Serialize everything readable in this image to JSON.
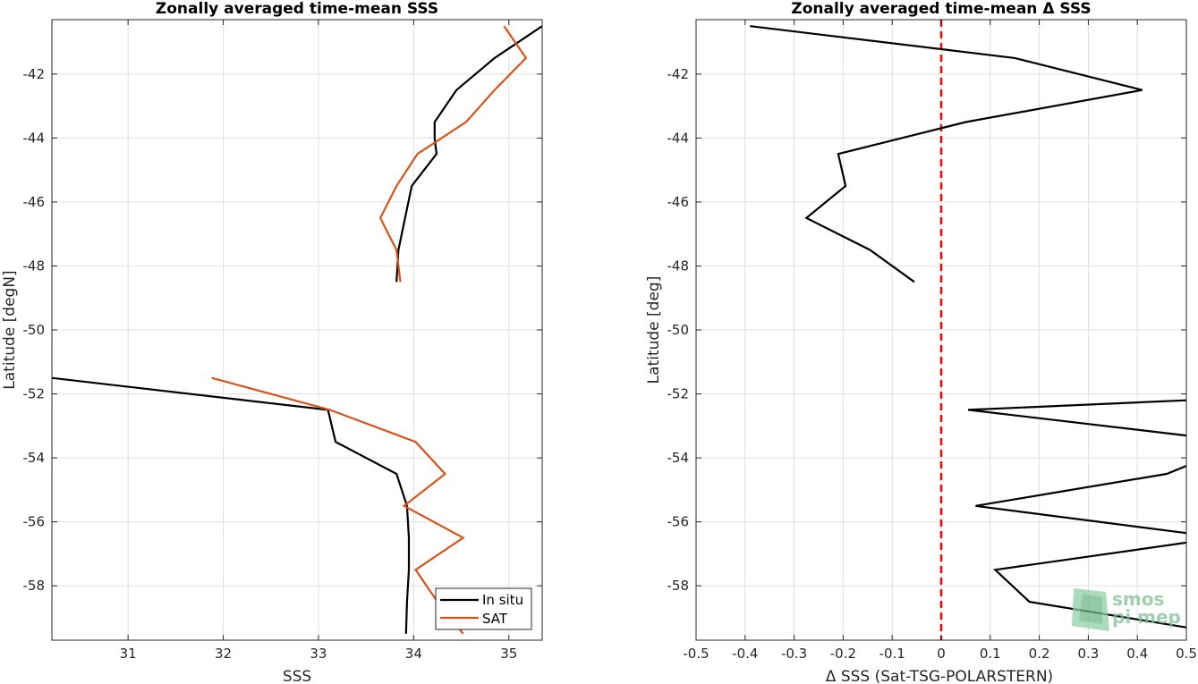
{
  "chart_data": [
    {
      "type": "line",
      "title": "Zonally averaged time-mean SSS",
      "xlabel": "SSS",
      "ylabel": "Latitude [degN]",
      "xlim": [
        30.2,
        35.35
      ],
      "ylim": [
        -59.7,
        -40.3
      ],
      "xticks": [
        31,
        32,
        33,
        34,
        35
      ],
      "yticks": [
        -42,
        -44,
        -46,
        -48,
        -50,
        -52,
        -54,
        -56,
        -58
      ],
      "grid": true,
      "legend_position": "bottom-right",
      "series": [
        {
          "name": "In situ",
          "color": "#000000",
          "segments": [
            {
              "x": [
                35.35,
                34.85,
                34.45,
                34.22,
                34.22,
                34.24,
                33.98,
                33.84,
                33.82
              ],
              "y": [
                -40.5,
                -41.5,
                -42.5,
                -43.5,
                -44.0,
                -44.5,
                -45.5,
                -47.5,
                -48.5
              ]
            },
            {
              "x": [
                30.2,
                33.1,
                33.18,
                33.82,
                33.93,
                33.95,
                33.95,
                33.93,
                33.92
              ],
              "y": [
                -51.5,
                -52.5,
                -53.5,
                -54.5,
                -55.5,
                -56.5,
                -57.5,
                -58.5,
                -59.5
              ]
            }
          ]
        },
        {
          "name": "SAT",
          "color": "#d95319",
          "segments": [
            {
              "x": [
                34.95,
                35.18,
                34.85,
                34.55,
                34.04,
                33.82,
                33.65,
                33.82,
                33.86
              ],
              "y": [
                -40.5,
                -41.5,
                -42.5,
                -43.5,
                -44.5,
                -45.5,
                -46.5,
                -47.5,
                -48.5
              ]
            },
            {
              "x": [
                31.88,
                33.12,
                34.02,
                34.33,
                33.9,
                34.52,
                34.02,
                34.25,
                34.52
              ],
              "y": [
                -51.5,
                -52.5,
                -53.5,
                -54.5,
                -55.5,
                -56.5,
                -57.5,
                -58.5,
                -59.5
              ]
            }
          ]
        }
      ]
    },
    {
      "type": "line",
      "title": "Zonally averaged time-mean Δ SSS",
      "xlabel": "Δ SSS (Sat-TSG-POLARSTERN)",
      "ylabel": "Latitude [deg]",
      "xlim": [
        -0.5,
        0.5
      ],
      "ylim": [
        -59.7,
        -40.3
      ],
      "xticks": [
        -0.5,
        -0.4,
        -0.3,
        -0.2,
        -0.1,
        0,
        0.1,
        0.2,
        0.3,
        0.4,
        0.5
      ],
      "xtick_labels": [
        "-0.5",
        "-0.4",
        "-0.3",
        "-0.2",
        "-0.1",
        "0",
        "0.1",
        "0.2",
        "0.3",
        "0.4",
        "0.5"
      ],
      "yticks": [
        -42,
        -44,
        -46,
        -48,
        -50,
        -52,
        -54,
        -56,
        -58
      ],
      "grid": true,
      "reference_line": {
        "x": 0,
        "color": "#ff0000",
        "style": "dashed"
      },
      "series": [
        {
          "color": "#000000",
          "segments": [
            {
              "x": [
                -0.39,
                0.15,
                0.41,
                0.05,
                -0.21,
                -0.195,
                -0.275,
                -0.145,
                -0.055
              ],
              "y": [
                -40.5,
                -41.5,
                -42.5,
                -43.5,
                -44.5,
                -45.5,
                -46.5,
                -47.5,
                -48.5
              ]
            },
            {
              "x": [
                0.5,
                0.055,
                0.5
              ],
              "y": [
                -52.2,
                -52.5,
                -53.3
              ]
            },
            {
              "x": [
                0.5,
                0.46,
                0.07,
                0.5
              ],
              "y": [
                -54.25,
                -54.5,
                -55.5,
                -56.35
              ]
            },
            {
              "x": [
                0.5,
                0.11,
                0.18,
                0.5
              ],
              "y": [
                -56.65,
                -57.5,
                -58.5,
                -59.3
              ]
            }
          ]
        }
      ]
    }
  ],
  "watermark": {
    "line1": "smos",
    "line2": "pi mep",
    "color": "#7fbf96"
  }
}
